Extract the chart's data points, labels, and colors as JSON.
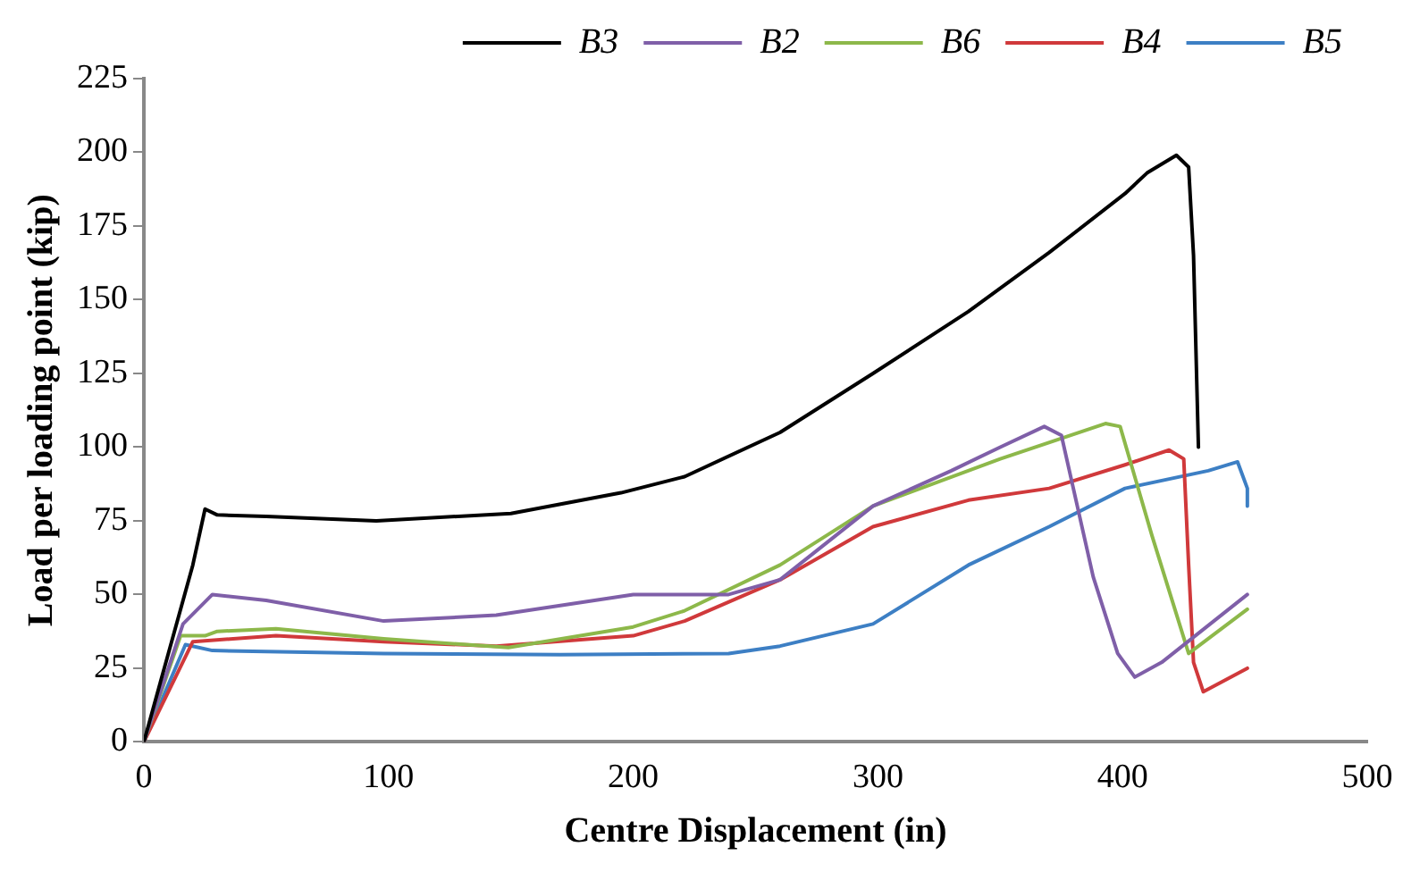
{
  "chart_data": {
    "type": "line",
    "xlabel": "Centre Displacement (in)",
    "ylabel": "Load per loading point (kip)",
    "xlim": [
      0,
      500
    ],
    "xticks": [
      0,
      100,
      200,
      300,
      400,
      500
    ],
    "ylim": [
      0,
      225
    ],
    "yticks": [
      0,
      25,
      50,
      75,
      100,
      125,
      150,
      175,
      200,
      225
    ],
    "legend": "top right",
    "marker": "none",
    "series": [
      {
        "name": "B3",
        "color": "#000000",
        "x": [
          0,
          10,
          20,
          25,
          30,
          50,
          95,
          150,
          195,
          221,
          260,
          298,
          337,
          370,
          401,
          410,
          422,
          427,
          429,
          431
        ],
        "values": [
          0,
          30,
          60,
          79,
          77,
          76.5,
          75,
          77.5,
          84.5,
          90,
          105,
          125,
          146,
          166,
          186,
          193,
          199,
          195,
          165,
          100
        ]
      },
      {
        "name": "B2",
        "color": "#7f5fa8",
        "x": [
          0,
          16,
          28,
          50,
          98,
          144,
          200,
          239,
          260,
          298,
          330,
          350,
          368,
          375,
          388,
          398,
          405,
          416,
          451
        ],
        "values": [
          0,
          40,
          50,
          48,
          41,
          43,
          50,
          50,
          55,
          80,
          92,
          100,
          107,
          104,
          56,
          30,
          22,
          27,
          50
        ]
      },
      {
        "name": "B6",
        "color": "#8db84a",
        "x": [
          0,
          15,
          25,
          30,
          54,
          98,
          149,
          200,
          221,
          260,
          298,
          350,
          393,
          399,
          412,
          427,
          451
        ],
        "values": [
          0,
          36,
          36,
          37.5,
          38.4,
          35,
          32,
          39,
          44.5,
          60,
          80,
          96,
          108,
          107,
          70,
          30,
          45
        ]
      },
      {
        "name": "B4",
        "color": "#d0393b",
        "x": [
          0,
          20,
          54,
          98,
          144,
          200,
          221,
          260,
          298,
          337,
          370,
          401,
          419,
          425,
          427,
          429,
          433,
          451
        ],
        "values": [
          0,
          34,
          36,
          34,
          32.5,
          36,
          41,
          55,
          73,
          82,
          86,
          94,
          99,
          96,
          60,
          27,
          17,
          25
        ]
      },
      {
        "name": "B5",
        "color": "#3d7fc4",
        "x": [
          0,
          17,
          28,
          98,
          170,
          239,
          260,
          298,
          337,
          370,
          401,
          435,
          447,
          451,
          451
        ],
        "values": [
          0,
          33,
          31,
          30,
          29.6,
          30,
          32.5,
          40,
          60,
          73,
          86,
          92,
          95,
          86,
          80
        ]
      }
    ]
  }
}
